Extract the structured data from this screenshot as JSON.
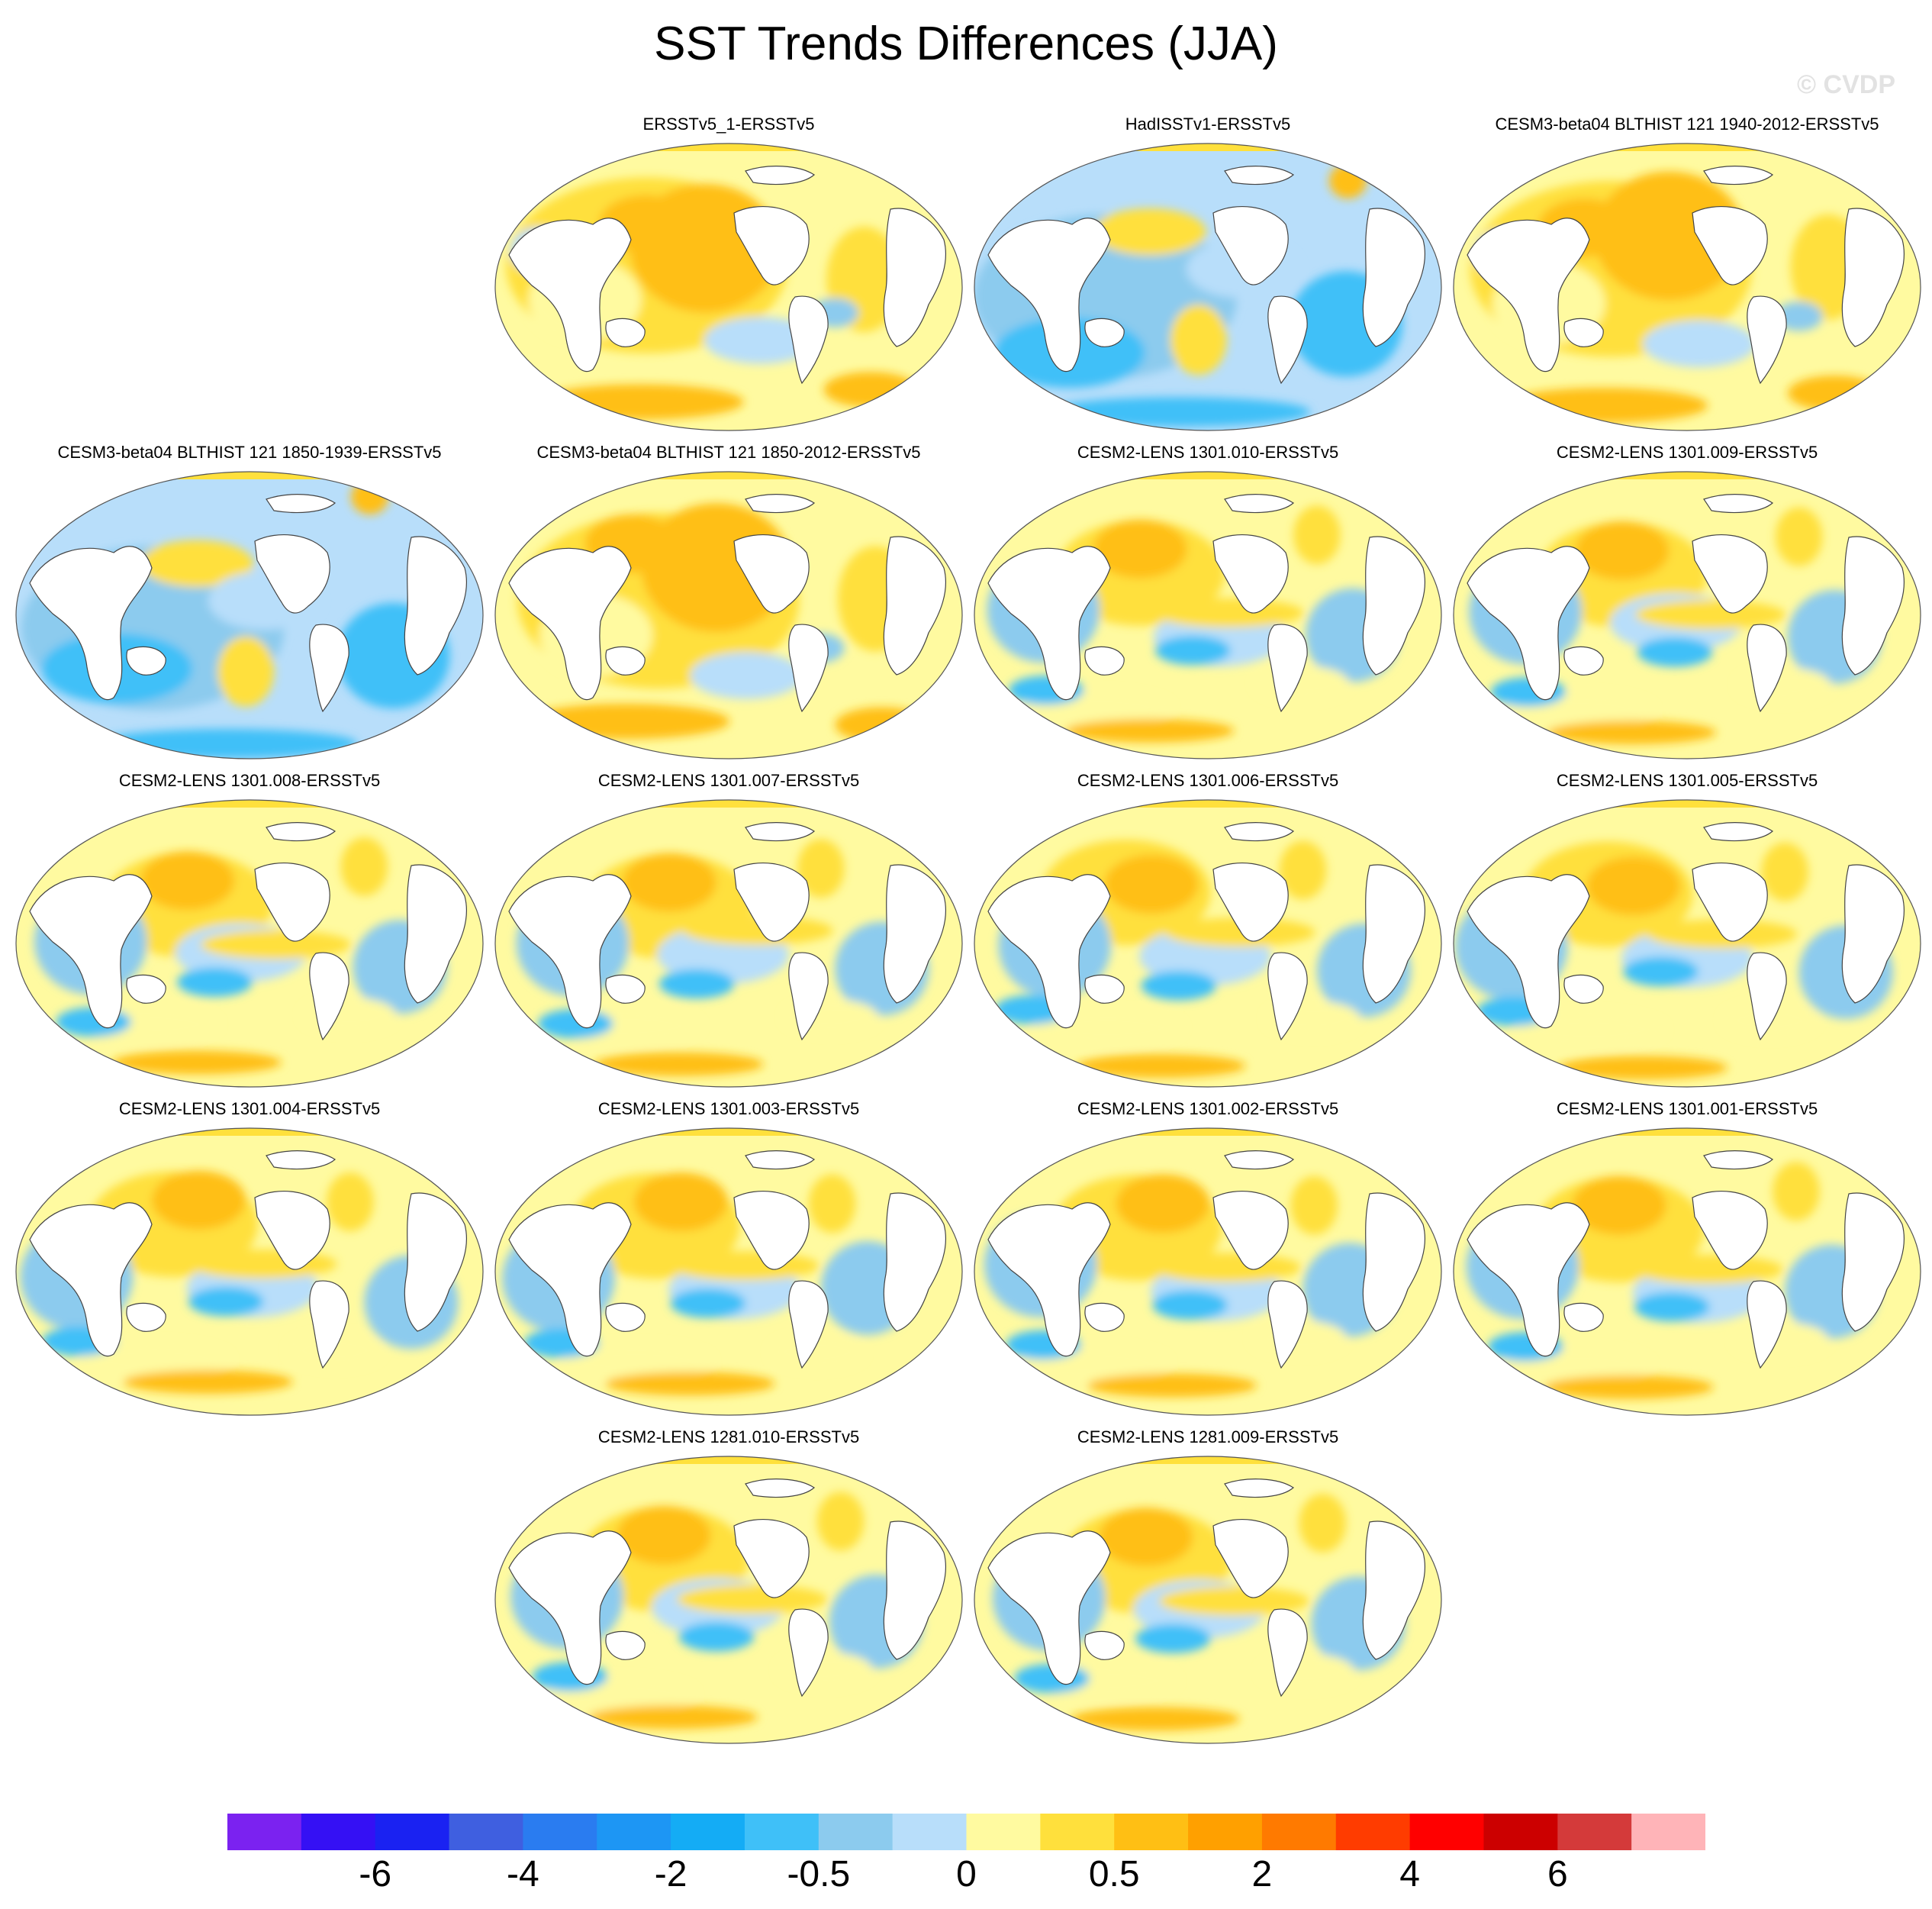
{
  "title": "SST Trends Differences (JJA)",
  "credit": "© CVDP",
  "map": {
    "projection": "Robinson",
    "field": "SST trend difference",
    "season": "JJA"
  },
  "panels": [
    {
      "label": "ERSSTv5_1-ERSSTv5",
      "pattern": "warm"
    },
    {
      "label": "HadISSTv1-ERSSTv5",
      "pattern": "cool"
    },
    {
      "label": "CESM3-beta04 BLTHIST 121 1940-2012-ERSSTv5",
      "pattern": "warm"
    },
    {
      "label": "CESM3-beta04 BLTHIST 121 1850-1939-ERSSTv5",
      "pattern": "cool"
    },
    {
      "label": "CESM3-beta04 BLTHIST 121 1850-2012-ERSSTv5",
      "pattern": "warm"
    },
    {
      "label": "CESM2-LENS 1301.010-ERSSTv5",
      "pattern": "mixed"
    },
    {
      "label": "CESM2-LENS 1301.009-ERSSTv5",
      "pattern": "mixed"
    },
    {
      "label": "CESM2-LENS 1301.008-ERSSTv5",
      "pattern": "mixed"
    },
    {
      "label": "CESM2-LENS 1301.007-ERSSTv5",
      "pattern": "mixed"
    },
    {
      "label": "CESM2-LENS 1301.006-ERSSTv5",
      "pattern": "mixed"
    },
    {
      "label": "CESM2-LENS 1301.005-ERSSTv5",
      "pattern": "mixed"
    },
    {
      "label": "CESM2-LENS 1301.004-ERSSTv5",
      "pattern": "mixed"
    },
    {
      "label": "CESM2-LENS 1301.003-ERSSTv5",
      "pattern": "mixed"
    },
    {
      "label": "CESM2-LENS 1301.002-ERSSTv5",
      "pattern": "mixed"
    },
    {
      "label": "CESM2-LENS 1301.001-ERSSTv5",
      "pattern": "mixed"
    },
    {
      "label": "CESM2-LENS 1281.010-ERSSTv5",
      "pattern": "mixed"
    },
    {
      "label": "CESM2-LENS 1281.009-ERSSTv5",
      "pattern": "mixed"
    }
  ],
  "colorbar": {
    "colors": [
      "#7b22f0",
      "#3510f4",
      "#1a22f2",
      "#3f5fe0",
      "#2a7cf0",
      "#1d96f4",
      "#14acf5",
      "#3fc0f8",
      "#8ccbee",
      "#b8defa",
      "#fffaa0",
      "#ffe03c",
      "#ffbf14",
      "#ffa000",
      "#ff7a00",
      "#ff3c00",
      "#ff0000",
      "#cc0000",
      "#d43a3a",
      "#ffb4b8"
    ],
    "labels": [
      "-6",
      "-4",
      "-2",
      "-0.5",
      "0",
      "0.5",
      "2",
      "4",
      "6"
    ]
  }
}
